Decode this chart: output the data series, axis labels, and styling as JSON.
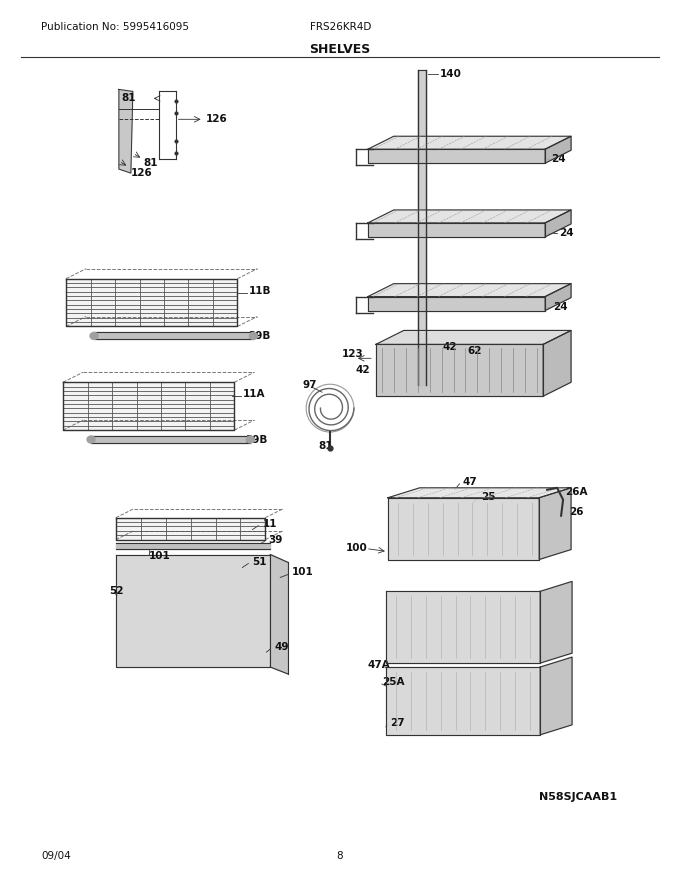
{
  "title": "SHELVES",
  "pub_no": "Publication No: 5995416095",
  "model": "FRS26KR4D",
  "date": "09/04",
  "page": "8",
  "watermark": "N58SJCAAB1",
  "bg_color": "#ffffff",
  "line_color": "#333333",
  "text_color": "#111111"
}
